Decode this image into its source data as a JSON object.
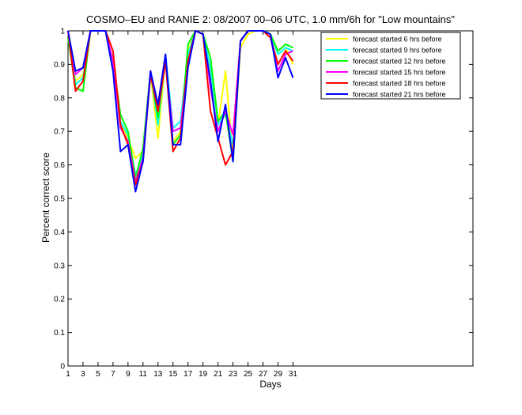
{
  "chart_data": {
    "type": "line",
    "title": "COSMO–EU and RANIE 2: 08/2007 00–06 UTC, 1.0 mm/6h for \"Low mountains\"",
    "xlabel": "Days",
    "ylabel": "Percent correct score",
    "xlim": [
      1,
      55
    ],
    "ylim": [
      0,
      1
    ],
    "xticks": [
      1,
      3,
      5,
      7,
      9,
      11,
      13,
      15,
      17,
      19,
      21,
      23,
      25,
      27,
      29,
      31
    ],
    "xtick_labels": [
      "1",
      "3",
      "5",
      "7",
      "9",
      "11",
      "13",
      "15",
      "17",
      "19",
      "21",
      "23",
      "25",
      "27",
      "29",
      "31"
    ],
    "yticks": [
      0,
      0.1,
      0.2,
      0.3,
      0.4,
      0.5,
      0.6,
      0.7,
      0.8,
      0.9,
      1
    ],
    "ytick_labels": [
      "0",
      "0.1",
      "0.2",
      "0.3",
      "0.4",
      "0.5",
      "0.6",
      "0.7",
      "0.8",
      "0.9",
      "1"
    ],
    "grid": false,
    "legend_position": "top-right",
    "x": [
      1,
      2,
      3,
      4,
      5,
      6,
      7,
      8,
      9,
      10,
      11,
      12,
      13,
      14,
      15,
      16,
      17,
      18,
      19,
      20,
      21,
      22,
      23,
      24,
      25,
      26,
      27,
      28,
      29,
      30,
      31
    ],
    "series": [
      {
        "name": "forecast started 6 hrs before",
        "color": "#ffff00",
        "values": [
          1,
          0.85,
          0.87,
          1,
          1,
          1,
          0.9,
          0.73,
          0.68,
          0.62,
          0.64,
          0.87,
          0.68,
          0.92,
          0.67,
          0.7,
          0.94,
          1,
          0.99,
          0.88,
          0.72,
          0.88,
          0.62,
          0.95,
          0.99,
          1,
          1,
          0.99,
          0.93,
          0.95,
          0.9
        ]
      },
      {
        "name": "forecast started 9 hrs before",
        "color": "#00ffff",
        "values": [
          1,
          0.84,
          0.86,
          1,
          1,
          1,
          0.9,
          0.73,
          0.69,
          0.57,
          0.63,
          0.88,
          0.72,
          0.93,
          0.71,
          0.73,
          0.93,
          1,
          0.99,
          0.89,
          0.72,
          0.75,
          0.66,
          0.97,
          1,
          1,
          1,
          0.99,
          0.93,
          0.95,
          0.94
        ]
      },
      {
        "name": "forecast started 12 hrs before",
        "color": "#00ff00",
        "values": [
          0.98,
          0.83,
          0.82,
          1,
          1,
          1,
          0.91,
          0.75,
          0.7,
          0.56,
          0.65,
          0.88,
          0.74,
          0.92,
          0.66,
          0.69,
          0.96,
          1,
          0.99,
          0.92,
          0.73,
          0.76,
          0.61,
          0.97,
          1,
          1,
          1,
          0.99,
          0.94,
          0.96,
          0.95
        ]
      },
      {
        "name": "forecast started 15 hrs before",
        "color": "#ff00ff",
        "values": [
          1,
          0.87,
          0.89,
          1,
          1,
          1,
          0.91,
          0.71,
          0.67,
          0.55,
          0.62,
          0.88,
          0.76,
          0.91,
          0.7,
          0.71,
          0.9,
          1,
          0.99,
          0.83,
          0.7,
          0.76,
          0.69,
          0.97,
          1,
          1,
          1,
          0.98,
          0.88,
          0.93,
          0.94
        ]
      },
      {
        "name": "forecast started 18 hrs before",
        "color": "#ff0000",
        "values": [
          1,
          0.82,
          0.85,
          1,
          1,
          1,
          0.94,
          0.72,
          0.66,
          0.54,
          0.61,
          0.87,
          0.76,
          0.91,
          0.64,
          0.68,
          0.91,
          1,
          0.99,
          0.76,
          0.68,
          0.6,
          0.64,
          0.97,
          1,
          1,
          1,
          0.98,
          0.9,
          0.94,
          0.91
        ]
      },
      {
        "name": "forecast started 21 hrs before",
        "color": "#0000ff",
        "values": [
          1,
          0.88,
          0.89,
          1,
          1,
          1,
          0.88,
          0.64,
          0.66,
          0.52,
          0.61,
          0.88,
          0.78,
          0.93,
          0.66,
          0.66,
          0.89,
          1,
          0.99,
          0.85,
          0.67,
          0.78,
          0.61,
          0.97,
          1,
          1,
          1,
          0.99,
          0.86,
          0.92,
          0.86
        ]
      }
    ]
  }
}
